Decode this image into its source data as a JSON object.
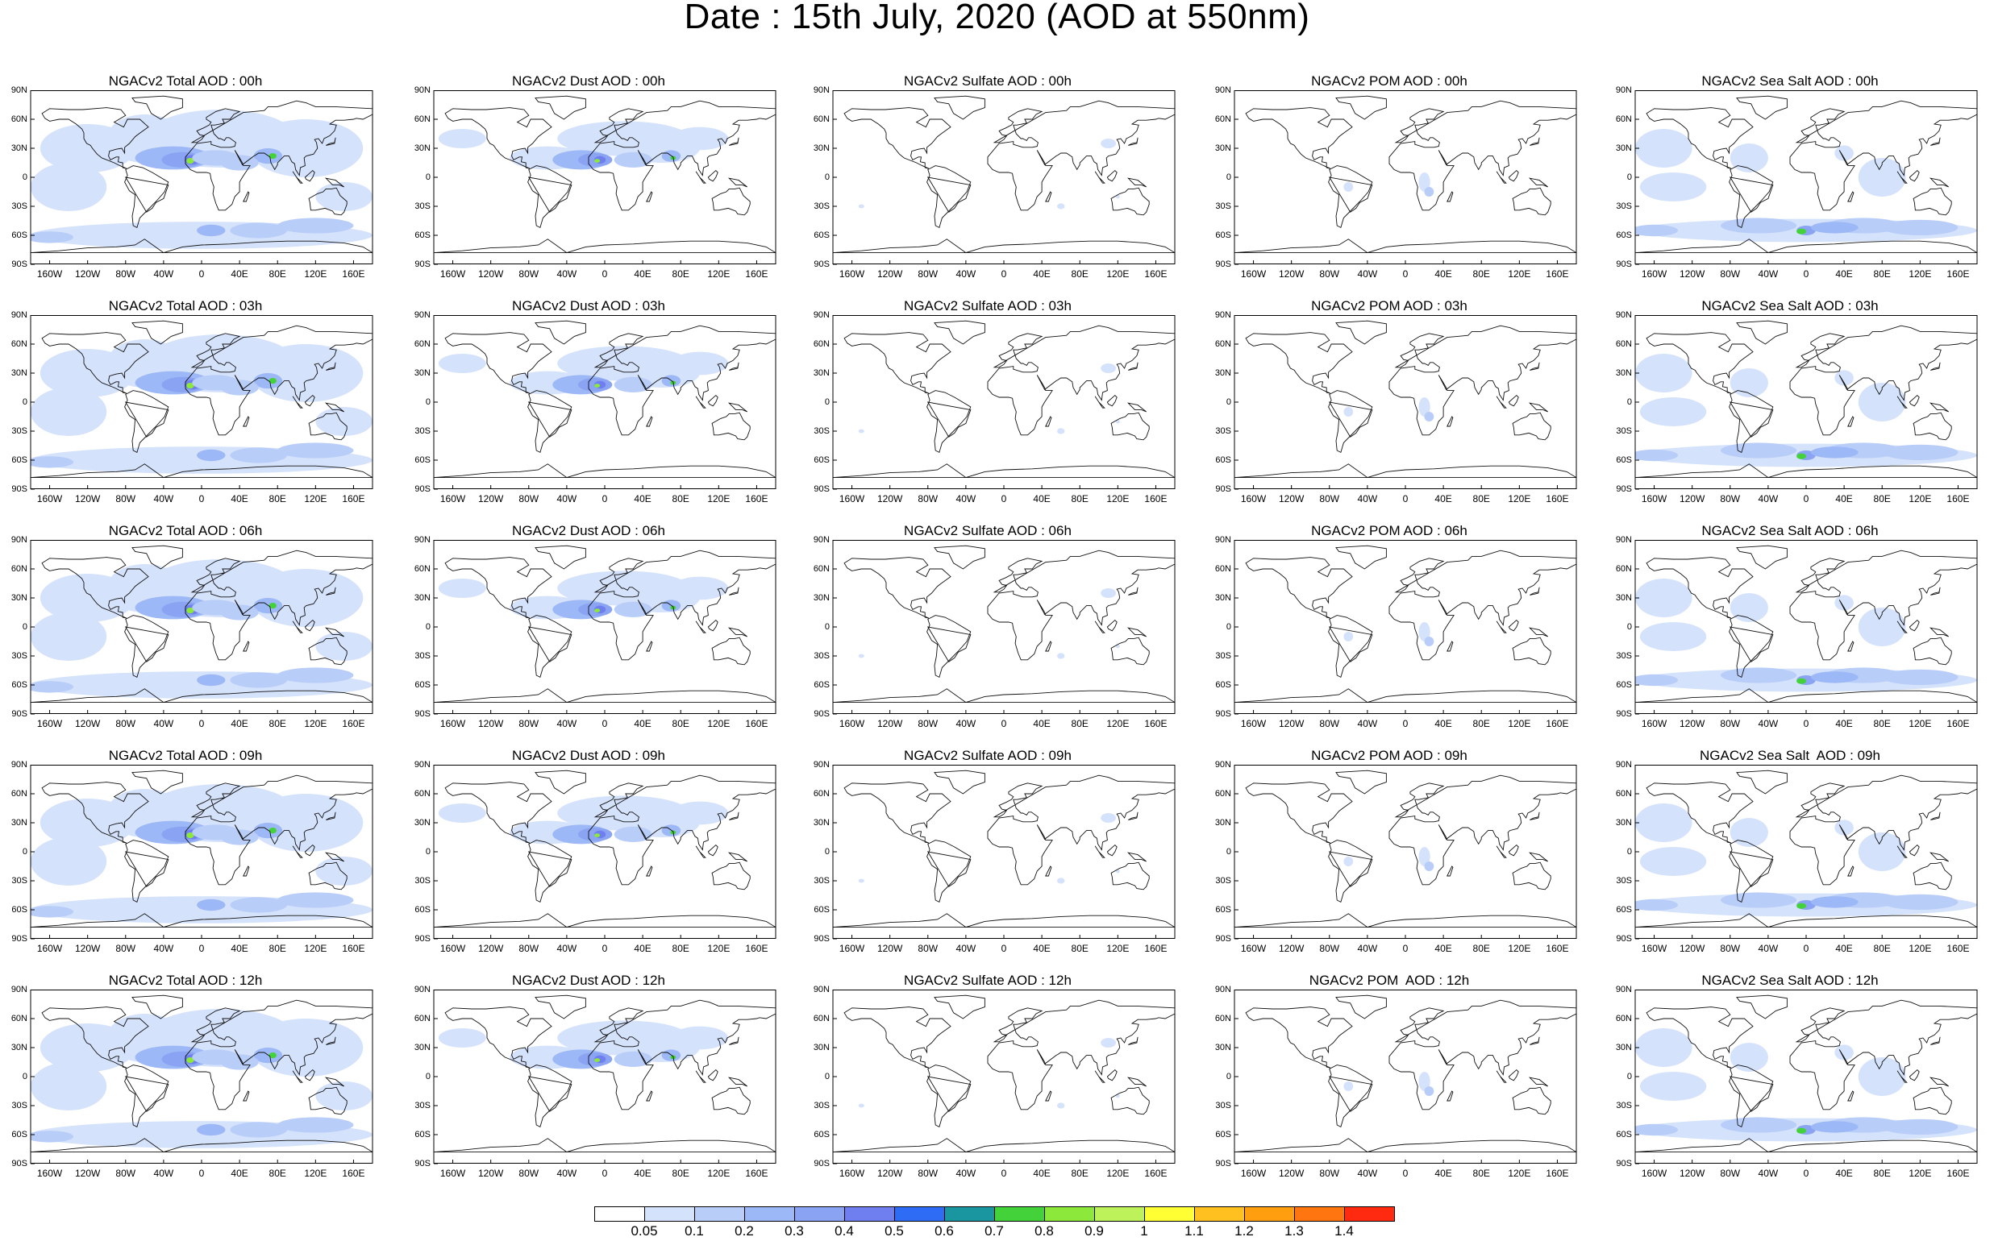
{
  "title": "Date : 15th July, 2020 (AOD at 550nm)",
  "lat_ticks": [
    "90N",
    "60N",
    "30N",
    "0",
    "30S",
    "60S",
    "90S"
  ],
  "lon_ticks": [
    "160W",
    "120W",
    "80W",
    "40W",
    "0",
    "40E",
    "80E",
    "120E",
    "160E"
  ],
  "colorbar": {
    "labels": [
      "0.05",
      "0.1",
      "0.2",
      "0.3",
      "0.4",
      "0.5",
      "0.6",
      "0.7",
      "0.8",
      "0.9",
      "1",
      "1.1",
      "1.2",
      "1.3",
      "1.4"
    ],
    "colors": [
      "#ffffff",
      "#d5e2fb",
      "#b9cdf9",
      "#9db8f6",
      "#8aa4f3",
      "#6f7ff0",
      "#2f6cf5",
      "#1a96a0",
      "#44d23a",
      "#8ce93c",
      "#bdf25a",
      "#ffff33",
      "#ffc020",
      "#ff9f10",
      "#ff7510",
      "#ff2a10"
    ]
  },
  "panels": [
    {
      "title": "NGACv2 Total AOD : 00h",
      "species": "total"
    },
    {
      "title": "NGACv2 Dust AOD : 00h",
      "species": "dust"
    },
    {
      "title": "NGACv2 Sulfate AOD : 00h",
      "species": "sulfate"
    },
    {
      "title": "NGACv2 POM AOD : 00h",
      "species": "pom"
    },
    {
      "title": "NGACv2 Sea Salt AOD : 00h",
      "species": "seasalt"
    },
    {
      "title": "NGACv2 Total AOD : 03h",
      "species": "total"
    },
    {
      "title": "NGACv2 Dust AOD : 03h",
      "species": "dust"
    },
    {
      "title": "NGACv2 Sulfate AOD : 03h",
      "species": "sulfate"
    },
    {
      "title": "NGACv2 POM AOD : 03h",
      "species": "pom"
    },
    {
      "title": "NGACv2 Sea Salt AOD : 03h",
      "species": "seasalt"
    },
    {
      "title": "NGACv2 Total AOD : 06h",
      "species": "total"
    },
    {
      "title": "NGACv2 Dust AOD : 06h",
      "species": "dust"
    },
    {
      "title": "NGACv2 Sulfate AOD : 06h",
      "species": "sulfate"
    },
    {
      "title": "NGACv2 POM AOD : 06h",
      "species": "pom"
    },
    {
      "title": "NGACv2 Sea Salt AOD : 06h",
      "species": "seasalt"
    },
    {
      "title": "NGACv2 Total AOD : 09h",
      "species": "total"
    },
    {
      "title": "NGACv2 Dust AOD : 09h",
      "species": "dust"
    },
    {
      "title": "NGACv2 Sulfate AOD : 09h",
      "species": "sulfate"
    },
    {
      "title": "NGACv2 POM AOD : 09h",
      "species": "pom"
    },
    {
      "title": "NGACv2 Sea Salt  AOD : 09h",
      "species": "seasalt"
    },
    {
      "title": "NGACv2 Total AOD : 12h",
      "species": "total"
    },
    {
      "title": "NGACv2 Dust AOD : 12h",
      "species": "dust"
    },
    {
      "title": "NGACv2 Sulfate AOD : 12h",
      "species": "sulfate"
    },
    {
      "title": "NGACv2 POM  AOD : 12h",
      "species": "pom"
    },
    {
      "title": "NGACv2 Sea Salt AOD : 12h",
      "species": "seasalt"
    }
  ]
}
